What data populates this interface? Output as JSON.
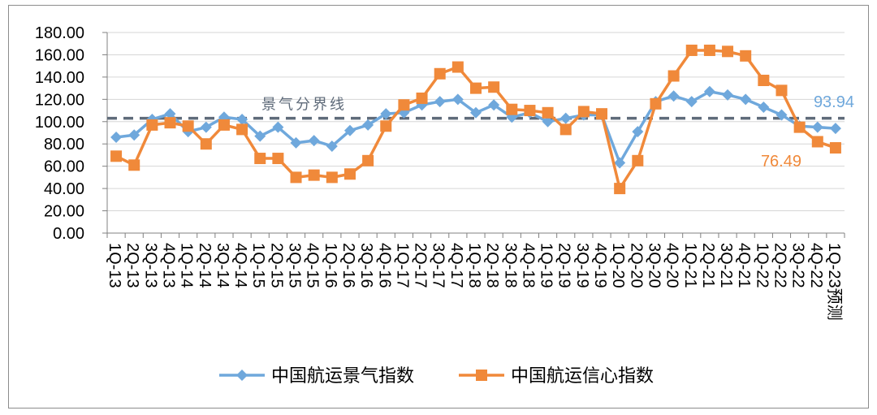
{
  "chart_data": {
    "type": "line",
    "title": "",
    "xlabel": "",
    "ylabel": "",
    "ylim": [
      0,
      180
    ],
    "y_ticks": [
      "0.00",
      "20.00",
      "40.00",
      "60.00",
      "80.00",
      "100.00",
      "120.00",
      "140.00",
      "160.00",
      "180.00"
    ],
    "categories": [
      "1Q-13",
      "2Q-13",
      "3Q-13",
      "4Q-13",
      "1Q-14",
      "2Q-14",
      "3Q-14",
      "4Q-14",
      "1Q-15",
      "2Q-15",
      "3Q-15",
      "4Q-15",
      "1Q-16",
      "2Q-16",
      "3Q-16",
      "4Q-16",
      "1Q-17",
      "2Q-17",
      "3Q-17",
      "4Q-17",
      "1Q-18",
      "2Q-18",
      "3Q-18",
      "4Q-18",
      "1Q-19",
      "2Q-19",
      "3Q-19",
      "4Q-19",
      "1Q-20",
      "2Q-20",
      "3Q-20",
      "4Q-20",
      "1Q-21",
      "2Q-21",
      "3Q-21",
      "4Q-21",
      "1Q-22",
      "2Q-22",
      "3Q-22",
      "4Q-22",
      "1Q-23预测"
    ],
    "series": [
      {
        "name": "中国航运景气指数",
        "color": "#6fa8dc",
        "marker": "diamond",
        "values": [
          86,
          88,
          102,
          107,
          91,
          95,
          104,
          102,
          87,
          95,
          81,
          83,
          78,
          92,
          97,
          107,
          108,
          115,
          118,
          120,
          108,
          115,
          104,
          108,
          100,
          103,
          106,
          106,
          63,
          91,
          118,
          123,
          118,
          127,
          124,
          120,
          113,
          106,
          96,
          95,
          93.94
        ]
      },
      {
        "name": "中国航运信心指数",
        "color": "#f0893a",
        "marker": "square",
        "values": [
          69,
          61,
          97,
          99,
          96,
          80,
          97,
          93,
          67,
          67,
          50,
          52,
          50,
          53,
          65,
          96,
          115,
          121,
          143,
          149,
          130,
          131,
          111,
          110,
          108,
          93,
          109,
          107,
          40,
          65,
          116,
          141,
          164,
          164,
          163,
          159,
          137,
          128,
          95,
          82,
          76.49
        ]
      }
    ],
    "reference_line": {
      "value": 103,
      "label": "景气分界线",
      "color": "#5f6b7a"
    },
    "annotations": [
      {
        "series": 0,
        "text": "93.94",
        "color": "#6fa8dc"
      },
      {
        "series": 1,
        "text": "76.49",
        "color": "#f0893a"
      }
    ],
    "legend_position": "bottom"
  }
}
